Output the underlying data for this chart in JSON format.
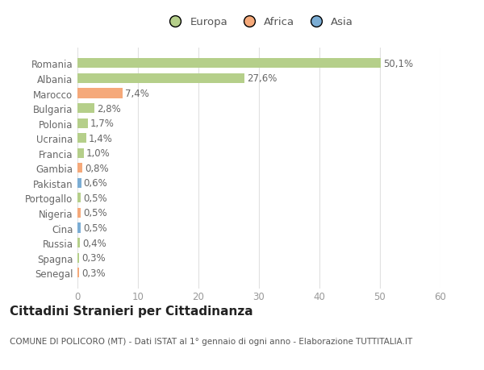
{
  "categories": [
    "Senegal",
    "Spagna",
    "Russia",
    "Cina",
    "Nigeria",
    "Portogallo",
    "Pakistan",
    "Gambia",
    "Francia",
    "Ucraina",
    "Polonia",
    "Bulgaria",
    "Marocco",
    "Albania",
    "Romania"
  ],
  "values": [
    0.3,
    0.3,
    0.4,
    0.5,
    0.5,
    0.5,
    0.6,
    0.8,
    1.0,
    1.4,
    1.7,
    2.8,
    7.4,
    27.6,
    50.1
  ],
  "labels": [
    "0,3%",
    "0,3%",
    "0,4%",
    "0,5%",
    "0,5%",
    "0,5%",
    "0,6%",
    "0,8%",
    "1,0%",
    "1,4%",
    "1,7%",
    "2,8%",
    "7,4%",
    "27,6%",
    "50,1%"
  ],
  "colors": [
    "#f5a97a",
    "#b5cf8a",
    "#b5cf8a",
    "#7badd4",
    "#f5a97a",
    "#b5cf8a",
    "#7badd4",
    "#f5a97a",
    "#b5cf8a",
    "#b5cf8a",
    "#b5cf8a",
    "#b5cf8a",
    "#f5a97a",
    "#b5cf8a",
    "#b5cf8a"
  ],
  "legend_labels": [
    "Europa",
    "Africa",
    "Asia"
  ],
  "legend_colors": [
    "#b5cf8a",
    "#f5a97a",
    "#7badd4"
  ],
  "title": "Cittadini Stranieri per Cittadinanza",
  "subtitle": "COMUNE DI POLICORO (MT) - Dati ISTAT al 1° gennaio di ogni anno - Elaborazione TUTTITALIA.IT",
  "xlim": [
    0,
    60
  ],
  "xticks": [
    0,
    10,
    20,
    30,
    40,
    50,
    60
  ],
  "bg_color": "#ffffff",
  "grid_color": "#e0e0e0",
  "bar_height": 0.65,
  "label_fontsize": 8.5,
  "tick_fontsize": 8.5,
  "title_fontsize": 11,
  "subtitle_fontsize": 7.5
}
